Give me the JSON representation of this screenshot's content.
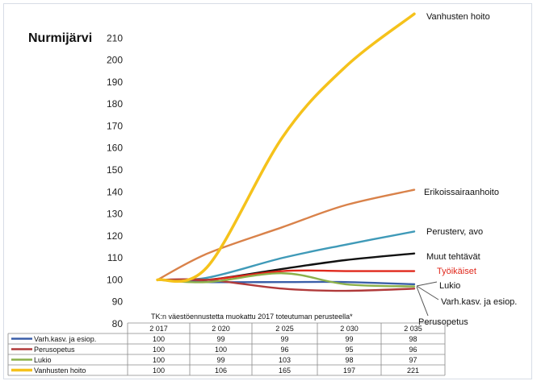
{
  "chart_data": {
    "type": "line",
    "title": "Nurmijärvi",
    "note": "TK:n väestöennustetta muokattu 2017 toteutuman perusteella*",
    "ylim": [
      80,
      220
    ],
    "yticks": [
      80,
      90,
      100,
      110,
      120,
      130,
      140,
      150,
      160,
      170,
      180,
      190,
      200,
      210
    ],
    "categories": [
      "2 017",
      "2 020",
      "2 025",
      "2 030",
      "2 035"
    ],
    "series": [
      {
        "name": "Varh.kasv. ja esiop.",
        "color": "#3b5fa8",
        "values": [
          100,
          99,
          99,
          99,
          98
        ]
      },
      {
        "name": "Perusopetus",
        "color": "#b03a3a",
        "values": [
          100,
          100,
          96,
          95,
          96
        ]
      },
      {
        "name": "Lukio",
        "color": "#8cb04a",
        "values": [
          100,
          99,
          103,
          98,
          97
        ]
      },
      {
        "name": "Vanhusten hoito",
        "color": "#f5c21b",
        "values": [
          100,
          106,
          165,
          197,
          221
        ]
      }
    ],
    "extra_lines": [
      {
        "color": "#d9824a",
        "values": [
          100,
          112,
          124,
          134,
          141
        ]
      },
      {
        "color": "#3f9ab8",
        "values": [
          100,
          101,
          110,
          116,
          122
        ]
      },
      {
        "color": "#111111",
        "values": [
          100,
          100,
          105,
          109,
          112
        ]
      },
      {
        "color": "#e0281c",
        "values": [
          100,
          100,
          104,
          104,
          104
        ]
      }
    ],
    "end_labels": [
      {
        "text": "Vanhusten hoito",
        "color": "#111111",
        "y": 221
      },
      {
        "text": "Erikoissairaanhoito",
        "color": "#111111",
        "y": 141
      },
      {
        "text": "Perusterv, avo",
        "color": "#111111",
        "y": 122
      },
      {
        "text": "Muut tehtävät",
        "color": "#111111",
        "y": 112
      },
      {
        "text": "Työikäiset",
        "color": "#e0281c",
        "y": 104
      },
      {
        "text": "Lukio",
        "color": "#111111",
        "y": 101
      },
      {
        "text": "Varh.kasv. ja esiop.",
        "color": "#111111",
        "y": 94
      },
      {
        "text": "Perusopetus",
        "color": "#111111",
        "y": 84
      }
    ]
  }
}
